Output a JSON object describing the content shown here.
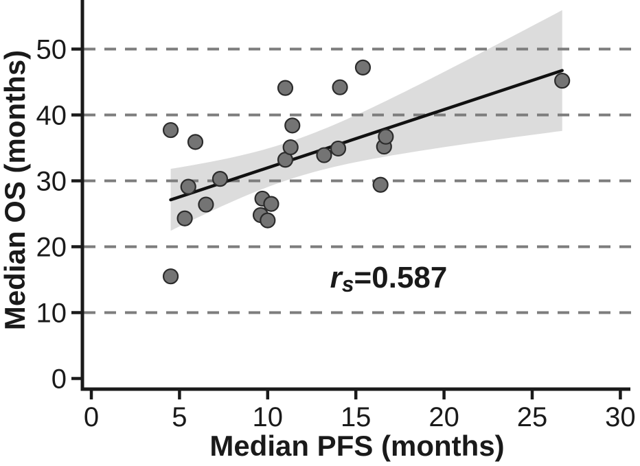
{
  "chart_data": {
    "type": "scatter",
    "title": "",
    "xlabel": "Median PFS (months)",
    "ylabel": "Median OS (months)",
    "xlim": [
      0,
      30
    ],
    "ylim": [
      0,
      57.5
    ],
    "xticks": [
      0,
      5,
      10,
      15,
      20,
      25,
      30
    ],
    "yticks": [
      0,
      10,
      20,
      30,
      40,
      50
    ],
    "gridlines_y": [
      10,
      20,
      30,
      40,
      50
    ],
    "grid_style": "dashed-horizontal",
    "legend": "none",
    "annotation": {
      "full_text": "rs=0.587",
      "r_italic": "r",
      "s_subscript_italic": "s",
      "value_part": "=0.587"
    },
    "points": [
      [
        4.5,
        37.7
      ],
      [
        5.9,
        35.9
      ],
      [
        7.3,
        30.3
      ],
      [
        5.5,
        29.1
      ],
      [
        6.5,
        26.4
      ],
      [
        5.3,
        24.3
      ],
      [
        4.5,
        15.5
      ],
      [
        9.7,
        27.3
      ],
      [
        10.2,
        26.5
      ],
      [
        9.6,
        24.8
      ],
      [
        10.0,
        24.0
      ],
      [
        11.0,
        33.2
      ],
      [
        11.3,
        35.1
      ],
      [
        11.4,
        38.4
      ],
      [
        11.0,
        44.1
      ],
      [
        13.2,
        33.9
      ],
      [
        14.0,
        34.9
      ],
      [
        14.1,
        44.2
      ],
      [
        15.4,
        47.2
      ],
      [
        16.4,
        29.4
      ],
      [
        16.6,
        35.2
      ],
      [
        16.7,
        36.7
      ],
      [
        26.7,
        45.2
      ]
    ],
    "regression": {
      "show_line": true,
      "show_ci_band": true,
      "ci_t_value": 2.08
    },
    "colors": {
      "background": "#ffffff",
      "axis": "#1a1a1a",
      "grid": "#7d7d7d",
      "band": "#dcdcdc",
      "line": "#111111",
      "point_fill": "#747474",
      "point_stroke": "#2b2b2b",
      "text": "#1a1a1a"
    }
  }
}
